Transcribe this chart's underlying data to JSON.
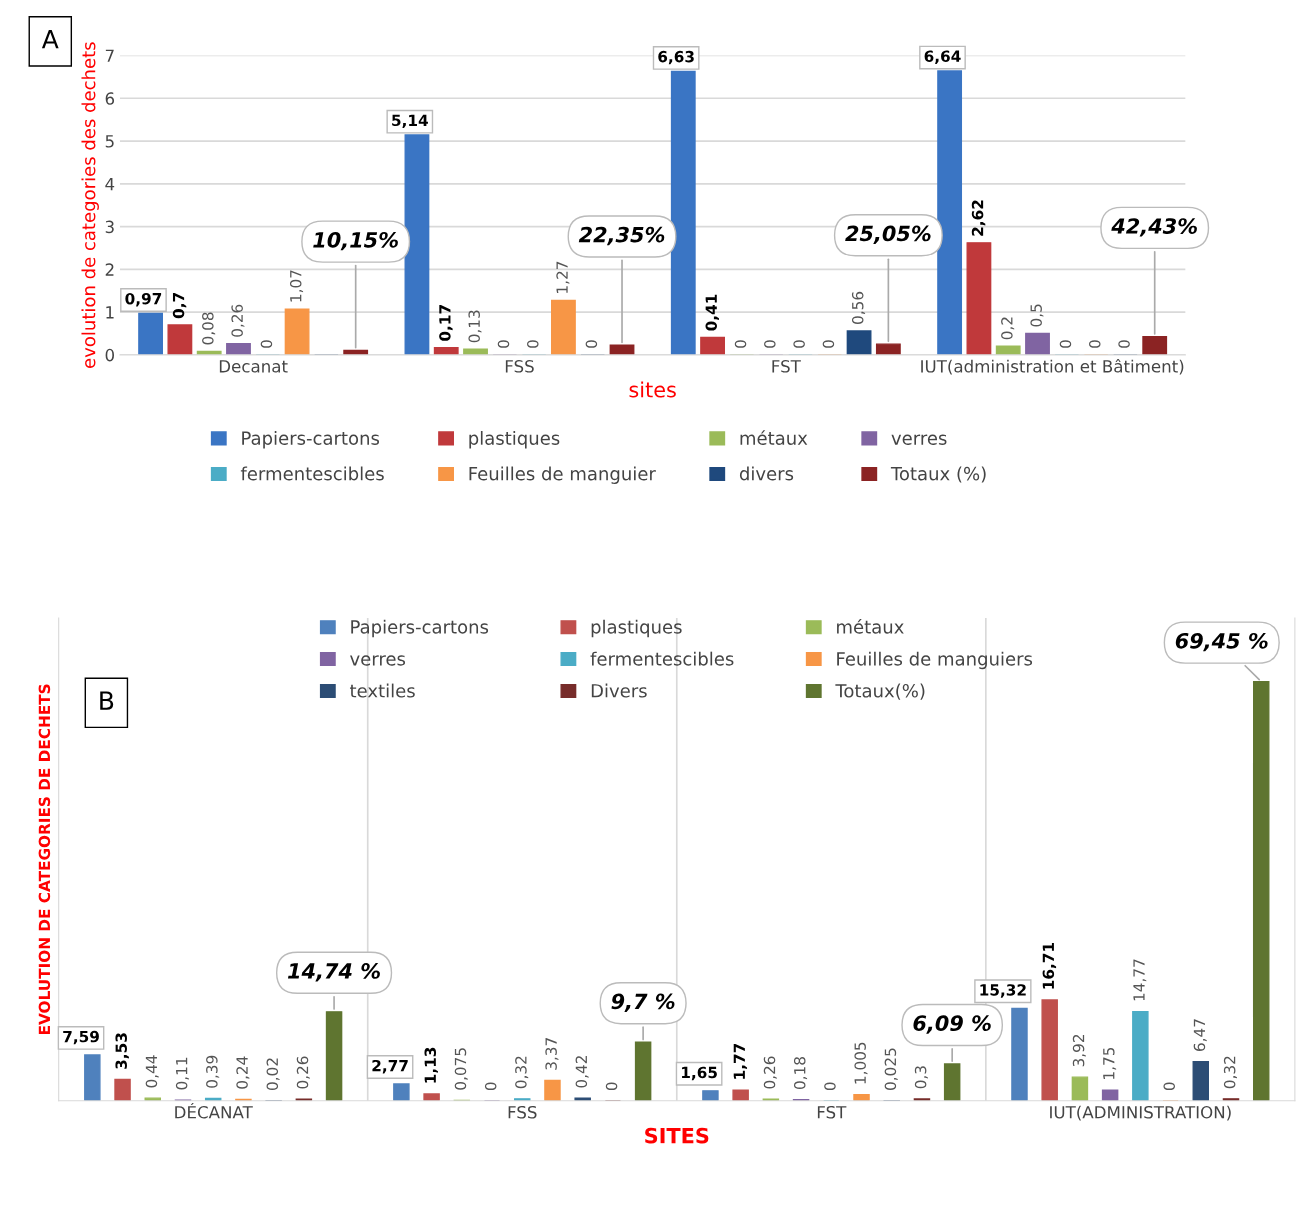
{
  "chart_data": [
    {
      "type": "bar",
      "title": "A",
      "xlabel": "sites",
      "ylabel": "evolution de categories des dechets",
      "categories": [
        "Decanat",
        "FSS",
        "FST",
        "IUT(administration et Bâtiment)"
      ],
      "ylim": [
        0,
        7
      ],
      "yticks": [
        0,
        1,
        2,
        3,
        4,
        5,
        6,
        7
      ],
      "grid": "y",
      "legend": "bottom",
      "series": [
        {
          "name": "Papiers-cartons",
          "color": "#3a75c4",
          "values": [
            0.97,
            5.14,
            6.63,
            6.64
          ],
          "value_labels": [
            "0,97",
            "5,14",
            "6,63",
            "6,64"
          ]
        },
        {
          "name": "plastiques",
          "color": "#c0393b",
          "values": [
            0.7,
            0.17,
            0.41,
            2.62
          ],
          "value_labels": [
            "0,7",
            "0,17",
            "0,41",
            "2,62"
          ]
        },
        {
          "name": "métaux",
          "color": "#9bbb59",
          "values": [
            0.08,
            0.13,
            0,
            0.2
          ],
          "value_labels": [
            "0,08",
            "0,13",
            "0",
            "0,2"
          ]
        },
        {
          "name": "verres",
          "color": "#8064a2",
          "values": [
            0.26,
            0,
            0,
            0.5
          ],
          "value_labels": [
            "0,26",
            "0",
            "0",
            "0,5"
          ]
        },
        {
          "name": "fermentescibles",
          "color": "#4bacc6",
          "values": [
            0,
            0,
            0,
            0
          ],
          "value_labels": [
            "0",
            "0",
            "0",
            "0"
          ]
        },
        {
          "name": "Feuilles de manguier",
          "color": "#f79646",
          "values": [
            1.07,
            1.27,
            0,
            0
          ],
          "value_labels": [
            "1,07",
            "1,27",
            "0",
            "0"
          ]
        },
        {
          "name": "divers",
          "color": "#1f497d",
          "values": [
            0,
            0,
            0.56,
            0
          ],
          "value_labels": [
            null,
            "0",
            "0,56",
            "0"
          ]
        },
        {
          "name": "Totaux (%)",
          "color": "#8b2323",
          "values": [
            0.1015,
            0.2235,
            0.2505,
            0.4243
          ],
          "value_labels": [
            "10,15%",
            "22,35%",
            "25,05%",
            "42,43%"
          ]
        }
      ]
    },
    {
      "type": "bar",
      "title": "B",
      "xlabel": "SITES",
      "ylabel": "EVOLUTION DE CATEGORIES DE DECHETS",
      "categories": [
        "DÉCANAT",
        "FSS",
        "FST",
        "IUT(ADMINISTRATION)"
      ],
      "ylim": [
        0,
        80
      ],
      "tick_labels": "x",
      "grid": "x",
      "legend": "top",
      "series": [
        {
          "name": "Papiers-cartons",
          "color": "#4f81bd",
          "values": [
            7.59,
            2.77,
            1.65,
            15.32
          ],
          "value_labels": [
            "7,59",
            "2,77",
            "1,65",
            "15,32"
          ]
        },
        {
          "name": "plastiques",
          "color": "#c0504d",
          "values": [
            3.53,
            1.13,
            1.77,
            16.71
          ],
          "value_labels": [
            "3,53",
            "1,13",
            "1,77",
            "16,71"
          ]
        },
        {
          "name": "métaux",
          "color": "#9bbb59",
          "values": [
            0.44,
            0.075,
            0.26,
            3.92
          ],
          "value_labels": [
            "0,44",
            "0,075",
            "0,26",
            "3,92"
          ]
        },
        {
          "name": "verres",
          "color": "#8064a2",
          "values": [
            0.11,
            0,
            0.18,
            1.75
          ],
          "value_labels": [
            "0,11",
            "0",
            "0,18",
            "1,75"
          ]
        },
        {
          "name": "fermentescibles",
          "color": "#4bacc6",
          "values": [
            0.39,
            0.32,
            0,
            14.77
          ],
          "value_labels": [
            "0,39",
            "0,32",
            "0",
            "14,77"
          ]
        },
        {
          "name": "Feuilles de manguiers",
          "color": "#f79646",
          "values": [
            0.24,
            3.37,
            1.005,
            0
          ],
          "value_labels": [
            "0,24",
            "3,37",
            "1,005",
            "0"
          ]
        },
        {
          "name": "textiles",
          "color": "#2c4d75",
          "values": [
            0.02,
            0.42,
            0.025,
            6.47
          ],
          "value_labels": [
            "0,02",
            "0,42",
            "0,025",
            "6,47"
          ]
        },
        {
          "name": "Divers",
          "color": "#772c2a",
          "values": [
            0.26,
            0,
            0.3,
            0.32
          ],
          "value_labels": [
            "0,26",
            "0",
            "0,3",
            "0,32"
          ]
        },
        {
          "name": "Totaux(%)",
          "color": "#5f7530",
          "values": [
            14.74,
            9.7,
            6.09,
            69.45
          ],
          "value_labels": [
            "14,74 %",
            "9,7 %",
            "6,09 %",
            "69,45 %"
          ]
        }
      ]
    }
  ]
}
